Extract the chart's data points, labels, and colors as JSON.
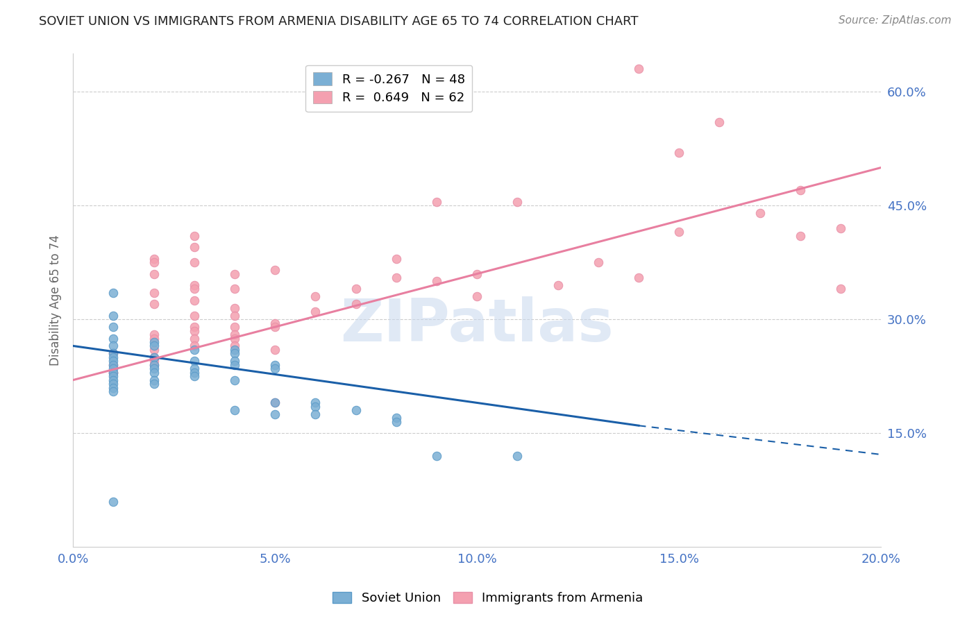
{
  "title": "SOVIET UNION VS IMMIGRANTS FROM ARMENIA DISABILITY AGE 65 TO 74 CORRELATION CHART",
  "source": "Source: ZipAtlas.com",
  "ylabel": "Disability Age 65 to 74",
  "legend_entries": [
    {
      "label": "R = -0.267   N = 48",
      "color": "#7bafd4"
    },
    {
      "label": "R =  0.649   N = 62",
      "color": "#f4a0b0"
    }
  ],
  "soviet_union_scatter": [
    [
      0.1,
      33.5
    ],
    [
      0.1,
      30.5
    ],
    [
      0.1,
      29.0
    ],
    [
      0.1,
      27.5
    ],
    [
      0.1,
      26.5
    ],
    [
      0.1,
      25.5
    ],
    [
      0.1,
      25.0
    ],
    [
      0.1,
      24.5
    ],
    [
      0.1,
      24.0
    ],
    [
      0.1,
      23.5
    ],
    [
      0.1,
      23.0
    ],
    [
      0.1,
      22.5
    ],
    [
      0.1,
      22.0
    ],
    [
      0.1,
      21.5
    ],
    [
      0.1,
      21.0
    ],
    [
      0.1,
      20.5
    ],
    [
      0.2,
      27.0
    ],
    [
      0.2,
      26.5
    ],
    [
      0.2,
      25.0
    ],
    [
      0.2,
      24.0
    ],
    [
      0.2,
      23.5
    ],
    [
      0.2,
      23.0
    ],
    [
      0.2,
      22.0
    ],
    [
      0.2,
      21.5
    ],
    [
      0.3,
      26.0
    ],
    [
      0.3,
      24.5
    ],
    [
      0.3,
      23.5
    ],
    [
      0.3,
      23.0
    ],
    [
      0.3,
      22.5
    ],
    [
      0.4,
      26.0
    ],
    [
      0.4,
      25.5
    ],
    [
      0.4,
      24.5
    ],
    [
      0.4,
      24.0
    ],
    [
      0.4,
      22.0
    ],
    [
      0.4,
      18.0
    ],
    [
      0.5,
      24.0
    ],
    [
      0.5,
      23.5
    ],
    [
      0.5,
      19.0
    ],
    [
      0.5,
      17.5
    ],
    [
      0.6,
      19.0
    ],
    [
      0.6,
      18.5
    ],
    [
      0.6,
      17.5
    ],
    [
      0.7,
      18.0
    ],
    [
      0.8,
      17.0
    ],
    [
      0.8,
      16.5
    ],
    [
      0.9,
      12.0
    ],
    [
      1.1,
      12.0
    ],
    [
      0.1,
      6.0
    ]
  ],
  "armenia_scatter": [
    [
      0.1,
      25.5
    ],
    [
      0.1,
      24.0
    ],
    [
      0.1,
      23.0
    ],
    [
      0.1,
      23.0
    ],
    [
      0.2,
      38.0
    ],
    [
      0.2,
      37.5
    ],
    [
      0.2,
      36.0
    ],
    [
      0.2,
      33.5
    ],
    [
      0.2,
      32.0
    ],
    [
      0.2,
      28.0
    ],
    [
      0.2,
      27.5
    ],
    [
      0.2,
      26.0
    ],
    [
      0.2,
      25.0
    ],
    [
      0.2,
      24.5
    ],
    [
      0.2,
      24.0
    ],
    [
      0.3,
      41.0
    ],
    [
      0.3,
      39.5
    ],
    [
      0.3,
      37.5
    ],
    [
      0.3,
      34.5
    ],
    [
      0.3,
      34.0
    ],
    [
      0.3,
      32.5
    ],
    [
      0.3,
      30.5
    ],
    [
      0.3,
      29.0
    ],
    [
      0.3,
      28.5
    ],
    [
      0.3,
      27.5
    ],
    [
      0.3,
      26.5
    ],
    [
      0.4,
      36.0
    ],
    [
      0.4,
      34.0
    ],
    [
      0.4,
      31.5
    ],
    [
      0.4,
      30.5
    ],
    [
      0.4,
      29.0
    ],
    [
      0.4,
      28.0
    ],
    [
      0.4,
      27.5
    ],
    [
      0.4,
      26.5
    ],
    [
      0.5,
      36.5
    ],
    [
      0.5,
      29.5
    ],
    [
      0.5,
      29.0
    ],
    [
      0.5,
      26.0
    ],
    [
      0.5,
      19.0
    ],
    [
      0.6,
      33.0
    ],
    [
      0.6,
      31.0
    ],
    [
      0.7,
      34.0
    ],
    [
      0.7,
      32.0
    ],
    [
      0.8,
      38.0
    ],
    [
      0.8,
      35.5
    ],
    [
      0.9,
      45.5
    ],
    [
      0.9,
      35.0
    ],
    [
      1.0,
      36.0
    ],
    [
      1.0,
      33.0
    ],
    [
      1.1,
      45.5
    ],
    [
      1.2,
      34.5
    ],
    [
      1.3,
      37.5
    ],
    [
      1.4,
      35.5
    ],
    [
      1.5,
      52.0
    ],
    [
      1.5,
      41.5
    ],
    [
      1.7,
      44.0
    ],
    [
      1.8,
      47.0
    ],
    [
      1.9,
      34.0
    ],
    [
      1.4,
      63.0
    ],
    [
      1.6,
      56.0
    ],
    [
      1.8,
      41.0
    ],
    [
      1.9,
      42.0
    ]
  ],
  "soviet_line_solid": {
    "x": [
      0.0,
      1.4
    ],
    "y": [
      26.5,
      16.0
    ],
    "color": "#1a5fa8"
  },
  "soviet_line_dashed": {
    "x": [
      1.4,
      2.5
    ],
    "y": [
      16.0,
      9.0
    ],
    "color": "#1a5fa8"
  },
  "armenia_line": {
    "x": [
      0.0,
      2.0
    ],
    "y": [
      22.0,
      50.0
    ],
    "color": "#e87fa0"
  },
  "scatter_color_soviet": "#7bafd4",
  "scatter_color_armenia": "#f4a0b0",
  "scatter_edge_soviet": "#5a9ac8",
  "scatter_edge_armenia": "#e890a8",
  "bg_color": "#ffffff",
  "grid_color": "#cccccc",
  "title_color": "#222222",
  "axis_label_color": "#4472c4",
  "watermark_text": "ZIPatlas",
  "xlim": [
    0.0,
    2.0
  ],
  "ylim": [
    0.0,
    65.0
  ],
  "yticks": [
    15.0,
    30.0,
    45.0,
    60.0
  ],
  "xticks": [
    0.0,
    0.5,
    1.0,
    1.5,
    2.0
  ],
  "xtick_labels": [
    "0.0%",
    "5.0%",
    "10.0%",
    "15.0%",
    "20.0%"
  ],
  "ytick_labels": [
    "15.0%",
    "30.0%",
    "45.0%",
    "60.0%"
  ],
  "marker_size": 80,
  "legend_label_soviet": "Soviet Union",
  "legend_label_armenia": "Immigrants from Armenia"
}
